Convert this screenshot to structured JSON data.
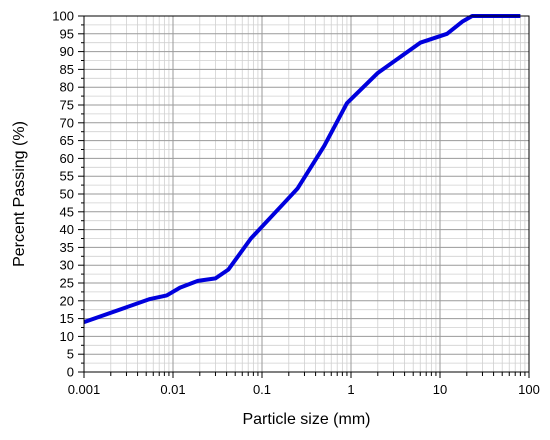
{
  "chart_data": {
    "type": "line",
    "xlabel": "Particle size (mm)",
    "ylabel": "Percent Passing (%)",
    "xscale": "log",
    "xlim": [
      0.001,
      100
    ],
    "ylim": [
      0,
      100
    ],
    "grid": true,
    "legend": "none",
    "x_ticks": [
      "0.001",
      "0.01",
      "0.1",
      "1",
      "10",
      "100"
    ],
    "x_tick_values": [
      0.001,
      0.01,
      0.1,
      1,
      10,
      100
    ],
    "y_ticks": [
      "0",
      "5",
      "10",
      "15",
      "20",
      "25",
      "30",
      "35",
      "40",
      "45",
      "50",
      "55",
      "60",
      "65",
      "70",
      "75",
      "80",
      "85",
      "90",
      "95",
      "100"
    ],
    "y_tick_values": [
      0,
      5,
      10,
      15,
      20,
      25,
      30,
      35,
      40,
      45,
      50,
      55,
      60,
      65,
      70,
      75,
      80,
      85,
      90,
      95,
      100
    ],
    "series": [
      {
        "color": "#0000dd",
        "x": [
          0.001,
          0.0055,
          0.0085,
          0.012,
          0.019,
          0.03,
          0.042,
          0.075,
          0.17,
          0.25,
          0.5,
          0.9,
          2.0,
          6.0,
          12.0,
          18.0,
          23.0,
          80.0
        ],
        "y": [
          14,
          20.5,
          21.5,
          23.7,
          25.6,
          26.3,
          28.8,
          37.5,
          47,
          51.5,
          63.5,
          75.5,
          84,
          92.5,
          95,
          98.5,
          100,
          100
        ]
      }
    ]
  }
}
